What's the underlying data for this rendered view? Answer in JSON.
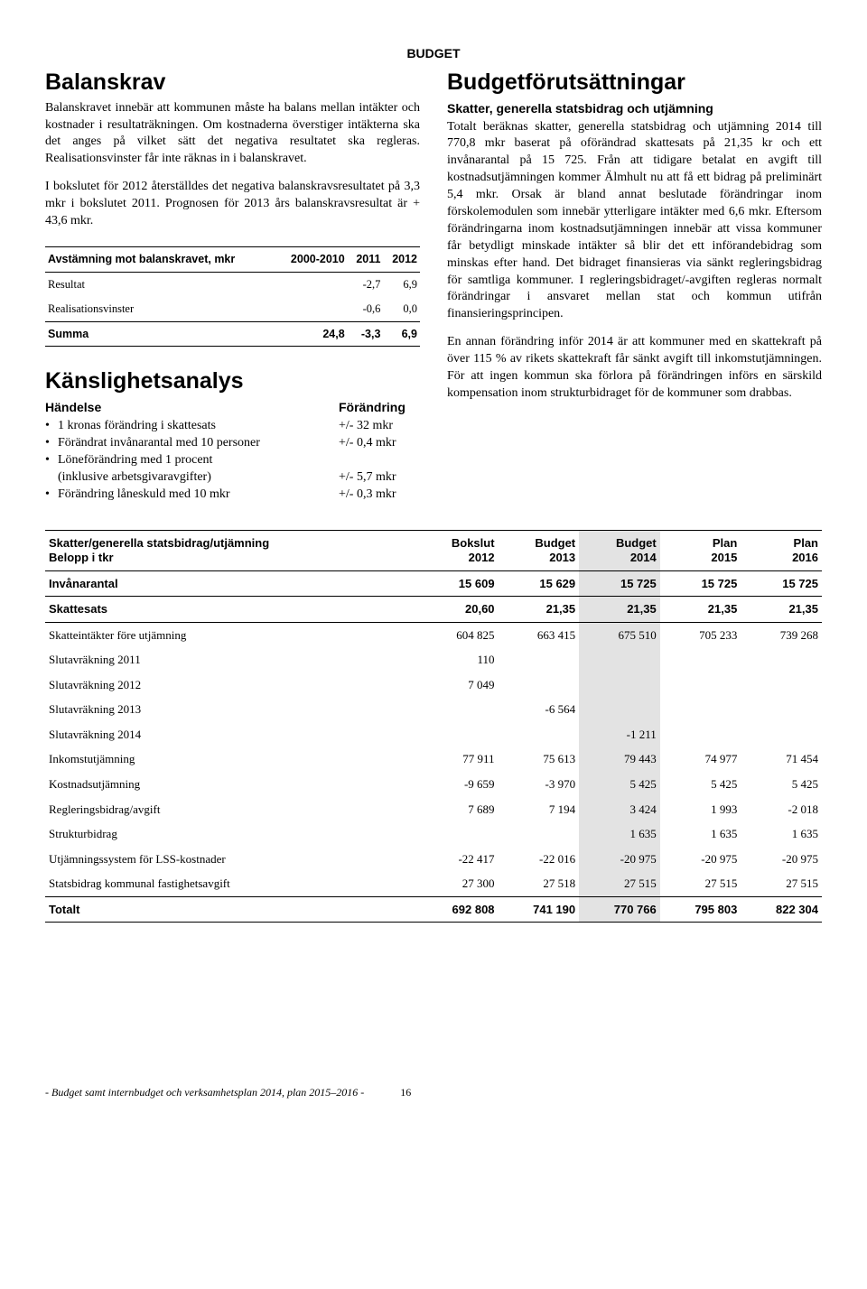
{
  "header": "BUDGET",
  "left": {
    "h1_balanskrav": "Balanskrav",
    "p1": "Balanskravet innebär att kommunen måste ha balans mellan intäkter och kostnader i resultaträkningen. Om kostnaderna överstiger intäkterna ska det anges på vilket sätt det negativa resultatet ska regleras. Realisationsvinster får inte räknas in i balanskravet.",
    "p2": "I bokslutet för 2012 återställdes det negativa balanskravsresultatet på 3,3 mkr i bokslutet 2011. Prognosen för 2013 års balanskravsresultat är + 43,6 mkr.",
    "t1": {
      "head": [
        "Avstämning mot balanskravet, mkr",
        "2000-2010",
        "2011",
        "2012"
      ],
      "rows": [
        [
          "Resultat",
          "",
          "-2,7",
          "6,9"
        ],
        [
          "Realisationsvinster",
          "",
          "-0,6",
          "0,0"
        ]
      ],
      "sum": [
        "Summa",
        "24,8",
        "-3,3",
        "6,9"
      ]
    },
    "h1_sens": "Känslighetsanalys",
    "sens_head_l": "Händelse",
    "sens_head_r": "Förändring",
    "sens": [
      {
        "l": "1 kronas förändring i skattesats",
        "v": "+/- 32 mkr"
      },
      {
        "l": "Förändrat invånarantal med 10 personer",
        "v": "+/- 0,4 mkr"
      },
      {
        "l": "Löneförändring med 1 procent",
        "v": ""
      },
      {
        "l": "(inklusive arbetsgivaravgifter)",
        "v": "+/- 5,7 mkr",
        "nobullet": true
      },
      {
        "l": "Förändring låneskuld med 10 mkr",
        "v": "+/- 0,3 mkr"
      }
    ]
  },
  "right": {
    "h1": "Budgetförutsättningar",
    "h2": "Skatter, generella statsbidrag och utjämning",
    "p1": "Totalt beräknas skatter, generella statsbidrag och utjämning 2014 till 770,8 mkr baserat på oförändrad skattesats på 21,35 kr och ett invånarantal på 15 725. Från att tidigare betalat en avgift till kostnadsutjämningen kommer Älmhult nu att få ett bidrag på preliminärt 5,4 mkr. Orsak är bland annat beslutade förändringar inom förskolemodulen som innebär ytterligare intäkter med 6,6 mkr. Eftersom förändringarna inom kostnadsutjämningen innebär att vissa kommuner får betydligt minskade intäkter så blir det ett införandebidrag som minskas efter hand. Det bidraget finansieras via sänkt regleringsbidrag för samtliga kommuner. I regleringsbidraget/-avgiften regleras normalt förändringar i ansvaret mellan stat och kommun utifrån finansieringsprincipen.",
    "p2": "En annan förändring inför 2014 är att kommuner med en skattekraft på över 115 % av rikets skattekraft får sänkt avgift till inkomstutjämningen. För att ingen kommun ska förlora på förändringen införs en särskild kompensation inom strukturbidraget för de kommuner som drabbas."
  },
  "big": {
    "head1": [
      "Skatter/generella statsbidrag/utjämning",
      "Bokslut",
      "Budget",
      "Budget",
      "Plan",
      "Plan"
    ],
    "head2": [
      "Belopp i tkr",
      "2012",
      "2013",
      "2014",
      "2015",
      "2016"
    ],
    "rows": [
      {
        "c": [
          "Invånarantal",
          "15 609",
          "15 629",
          "15 725",
          "15 725",
          "15 725"
        ],
        "bold": true,
        "line": true
      },
      {
        "c": [
          "Skattesats",
          "20,60",
          "21,35",
          "21,35",
          "21,35",
          "21,35"
        ],
        "bold": true,
        "line": true
      },
      {
        "c": [
          "Skatteintäkter före utjämning",
          "604 825",
          "663 415",
          "675 510",
          "705 233",
          "739 268"
        ]
      },
      {
        "c": [
          "Slutavräkning 2011",
          "110",
          "",
          "",
          "",
          ""
        ]
      },
      {
        "c": [
          "Slutavräkning 2012",
          "7 049",
          "",
          "",
          "",
          ""
        ]
      },
      {
        "c": [
          "Slutavräkning 2013",
          "",
          "-6 564",
          "",
          "",
          ""
        ]
      },
      {
        "c": [
          "Slutavräkning 2014",
          "",
          "",
          "-1 211",
          "",
          ""
        ]
      },
      {
        "c": [
          "Inkomstutjämning",
          "77 911",
          "75 613",
          "79 443",
          "74 977",
          "71 454"
        ]
      },
      {
        "c": [
          "Kostnadsutjämning",
          "-9 659",
          "-3 970",
          "5 425",
          "5 425",
          "5 425"
        ]
      },
      {
        "c": [
          "Regleringsbidrag/avgift",
          "7 689",
          "7 194",
          "3 424",
          "1 993",
          "-2 018"
        ]
      },
      {
        "c": [
          "Strukturbidrag",
          "",
          "",
          "1 635",
          "1 635",
          "1 635"
        ]
      },
      {
        "c": [
          "Utjämningssystem för LSS-kostnader",
          "-22 417",
          "-22 016",
          "-20 975",
          "-20 975",
          "-20 975"
        ]
      },
      {
        "c": [
          "Statsbidrag kommunal fastighetsavgift",
          "27 300",
          "27 518",
          "27 515",
          "27 515",
          "27 515"
        ],
        "line": true
      },
      {
        "c": [
          "Totalt",
          "692 808",
          "741 190",
          "770 766",
          "795 803",
          "822 304"
        ],
        "bold": true,
        "line": true
      }
    ]
  },
  "footer": {
    "text": "- Budget samt internbudget och verksamhetsplan 2014, plan 2015–2016 -",
    "page": "16"
  }
}
